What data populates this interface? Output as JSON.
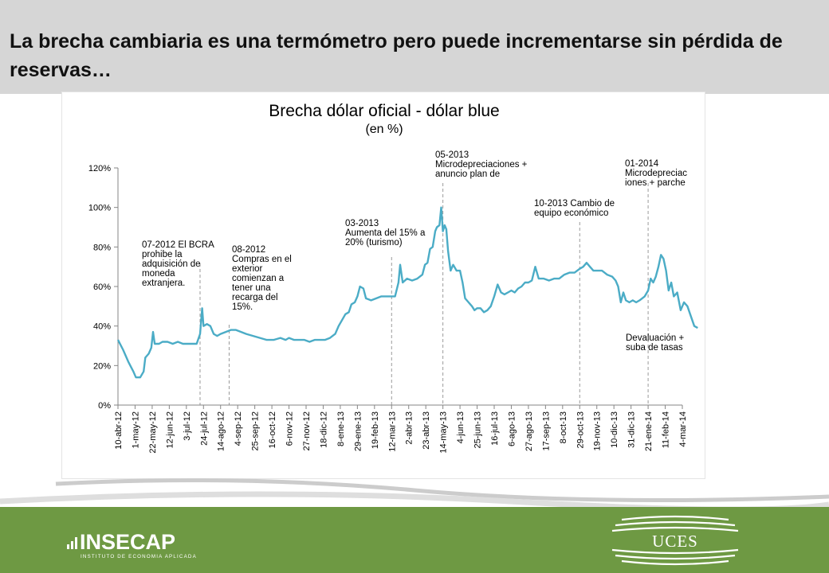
{
  "slide": {
    "title": "La brecha cambiaria es una termómetro pero puede incrementarse sin pérdida de reservas…"
  },
  "colors": {
    "line": "#4bacc6",
    "header_bg": "#d6d6d6",
    "footer_bg": "#6e9943"
  },
  "logos": {
    "insecap_name": "INSECAP",
    "insecap_sub": "INSTITUTO DE ECONOMIA APLICADA",
    "uces_name": "UCES"
  },
  "chart_data": {
    "type": "line",
    "title": "Brecha dólar oficial - dólar blue",
    "subtitle": "(en %)",
    "ylim": [
      0,
      120
    ],
    "yticks": [
      "0%",
      "20%",
      "40%",
      "60%",
      "80%",
      "100%",
      "120%"
    ],
    "grid": false,
    "categories": [
      "10-abr-12",
      "1-may-12",
      "22-may-12",
      "12-jun-12",
      "3-jul-12",
      "24-jul-12",
      "14-ago-12",
      "4-sep-12",
      "25-sep-12",
      "16-oct-12",
      "6-nov-12",
      "27-nov-12",
      "18-dic-12",
      "8-ene-13",
      "29-ene-13",
      "19-feb-13",
      "12-mar-13",
      "2-abr-13",
      "23-abr-13",
      "14-may-13",
      "4-jun-13",
      "25-jun-13",
      "16-jul-13",
      "6-ago-13",
      "27-ago-13",
      "17-sep-13",
      "8-oct-13",
      "29-oct-13",
      "19-nov-13",
      "10-dic-13",
      "31-dic-13",
      "21-ene-14",
      "11-feb-14",
      "4-mar-14"
    ],
    "series": [
      {
        "values": [
          [
            0,
            33
          ],
          [
            0.3,
            28
          ],
          [
            0.6,
            22
          ],
          [
            0.9,
            17
          ],
          [
            1.05,
            14
          ],
          [
            1.3,
            14
          ],
          [
            1.5,
            17
          ],
          [
            1.6,
            24
          ],
          [
            1.8,
            26
          ],
          [
            1.95,
            29
          ],
          [
            2.05,
            37
          ],
          [
            2.15,
            31
          ],
          [
            2.4,
            31
          ],
          [
            2.6,
            32
          ],
          [
            2.9,
            32
          ],
          [
            3.2,
            31
          ],
          [
            3.5,
            32
          ],
          [
            3.8,
            31
          ],
          [
            4.1,
            31
          ],
          [
            4.4,
            31
          ],
          [
            4.6,
            31
          ],
          [
            4.8,
            36
          ],
          [
            4.92,
            49
          ],
          [
            5.0,
            40
          ],
          [
            5.2,
            41
          ],
          [
            5.4,
            40
          ],
          [
            5.6,
            36
          ],
          [
            5.8,
            35
          ],
          [
            6.0,
            36
          ],
          [
            6.3,
            37
          ],
          [
            6.6,
            38
          ],
          [
            6.9,
            38
          ],
          [
            7.2,
            37
          ],
          [
            7.5,
            36
          ],
          [
            7.9,
            35
          ],
          [
            8.3,
            34
          ],
          [
            8.7,
            33
          ],
          [
            9.1,
            33
          ],
          [
            9.5,
            34
          ],
          [
            9.8,
            33
          ],
          [
            10.0,
            34
          ],
          [
            10.3,
            33
          ],
          [
            10.6,
            33
          ],
          [
            10.9,
            33
          ],
          [
            11.2,
            32
          ],
          [
            11.5,
            33
          ],
          [
            11.8,
            33
          ],
          [
            12.1,
            33
          ],
          [
            12.4,
            34
          ],
          [
            12.7,
            36
          ],
          [
            12.9,
            40
          ],
          [
            13.1,
            43
          ],
          [
            13.3,
            46
          ],
          [
            13.5,
            47
          ],
          [
            13.65,
            51
          ],
          [
            13.85,
            52
          ],
          [
            14.0,
            55
          ],
          [
            14.15,
            60
          ],
          [
            14.35,
            59
          ],
          [
            14.5,
            54
          ],
          [
            14.8,
            53
          ],
          [
            15.1,
            54
          ],
          [
            15.4,
            55
          ],
          [
            15.7,
            55
          ],
          [
            16.0,
            55
          ],
          [
            16.2,
            55
          ],
          [
            16.4,
            62
          ],
          [
            16.5,
            71
          ],
          [
            16.65,
            62
          ],
          [
            16.9,
            64
          ],
          [
            17.2,
            63
          ],
          [
            17.5,
            64
          ],
          [
            17.8,
            66
          ],
          [
            17.95,
            71
          ],
          [
            18.1,
            72
          ],
          [
            18.25,
            79
          ],
          [
            18.4,
            80
          ],
          [
            18.55,
            88
          ],
          [
            18.65,
            90
          ],
          [
            18.8,
            91
          ],
          [
            18.9,
            100
          ],
          [
            19.0,
            88
          ],
          [
            19.1,
            91
          ],
          [
            19.2,
            89
          ],
          [
            19.3,
            78
          ],
          [
            19.45,
            68
          ],
          [
            19.6,
            71
          ],
          [
            19.8,
            68
          ],
          [
            20.0,
            68
          ],
          [
            20.15,
            62
          ],
          [
            20.3,
            54
          ],
          [
            20.5,
            52
          ],
          [
            20.7,
            50
          ],
          [
            20.85,
            48
          ],
          [
            21.0,
            49
          ],
          [
            21.2,
            49
          ],
          [
            21.4,
            47
          ],
          [
            21.6,
            48
          ],
          [
            21.8,
            50
          ],
          [
            22.0,
            55
          ],
          [
            22.2,
            61
          ],
          [
            22.4,
            57
          ],
          [
            22.6,
            56
          ],
          [
            22.8,
            57
          ],
          [
            23.0,
            58
          ],
          [
            23.2,
            57
          ],
          [
            23.4,
            59
          ],
          [
            23.6,
            60
          ],
          [
            23.8,
            62
          ],
          [
            24.0,
            62
          ],
          [
            24.2,
            63
          ],
          [
            24.4,
            70
          ],
          [
            24.6,
            64
          ],
          [
            24.9,
            64
          ],
          [
            25.2,
            63
          ],
          [
            25.5,
            64
          ],
          [
            25.8,
            64
          ],
          [
            26.1,
            66
          ],
          [
            26.4,
            67
          ],
          [
            26.7,
            67
          ],
          [
            27.0,
            69
          ],
          [
            27.2,
            70
          ],
          [
            27.4,
            72
          ],
          [
            27.6,
            70
          ],
          [
            27.8,
            68
          ],
          [
            28.0,
            68
          ],
          [
            28.3,
            68
          ],
          [
            28.6,
            66
          ],
          [
            28.9,
            65
          ],
          [
            29.1,
            63
          ],
          [
            29.25,
            60
          ],
          [
            29.4,
            52
          ],
          [
            29.55,
            57
          ],
          [
            29.7,
            53
          ],
          [
            29.9,
            52
          ],
          [
            30.1,
            53
          ],
          [
            30.3,
            52
          ],
          [
            30.5,
            53
          ],
          [
            30.8,
            55
          ],
          [
            31.0,
            58
          ],
          [
            31.15,
            64
          ],
          [
            31.3,
            62
          ],
          [
            31.45,
            65
          ],
          [
            31.6,
            70
          ],
          [
            31.75,
            76
          ],
          [
            31.9,
            74
          ],
          [
            32.05,
            68
          ],
          [
            32.2,
            58
          ],
          [
            32.35,
            62
          ],
          [
            32.5,
            55
          ],
          [
            32.7,
            57
          ],
          [
            32.9,
            48
          ],
          [
            33.1,
            52
          ],
          [
            33.3,
            50
          ],
          [
            33.5,
            45
          ],
          [
            33.7,
            40
          ],
          [
            33.9,
            39
          ]
        ]
      }
    ],
    "annotations": [
      {
        "date": "3-jul-12",
        "at": 4.8,
        "lines": [
          "07-2012 El BCRA",
          "prohibe la",
          "adquisición de",
          "moneda",
          "extranjera."
        ]
      },
      {
        "date": "14-ago-12",
        "at": 6.5,
        "lines": [
          "08-2012",
          "Compras en el",
          "exterior",
          "comienzan a",
          "tener una",
          "recarga del",
          "15%."
        ]
      },
      {
        "date": "12-mar-13",
        "at": 16.0,
        "lines": [
          "03-2013",
          "Aumenta del 15% a",
          "20% (turismo)"
        ]
      },
      {
        "date": "14-may-13",
        "at": 19.0,
        "lines": [
          "05-2013",
          "Microdepreciaciones +",
          "anuncio plan de"
        ]
      },
      {
        "date": "29-oct-13",
        "at": 27.0,
        "lines": [
          "10-2013 Cambio de",
          "equipo económico"
        ]
      },
      {
        "date": "21-ene-14",
        "at": 31.0,
        "lines": [
          "01-2014",
          "Microdepreciac",
          "iones + parche"
        ]
      },
      {
        "date": "4-mar-14",
        "at": 33.9,
        "lines": [
          "Devaluación +",
          "suba de tasas"
        ]
      }
    ]
  }
}
